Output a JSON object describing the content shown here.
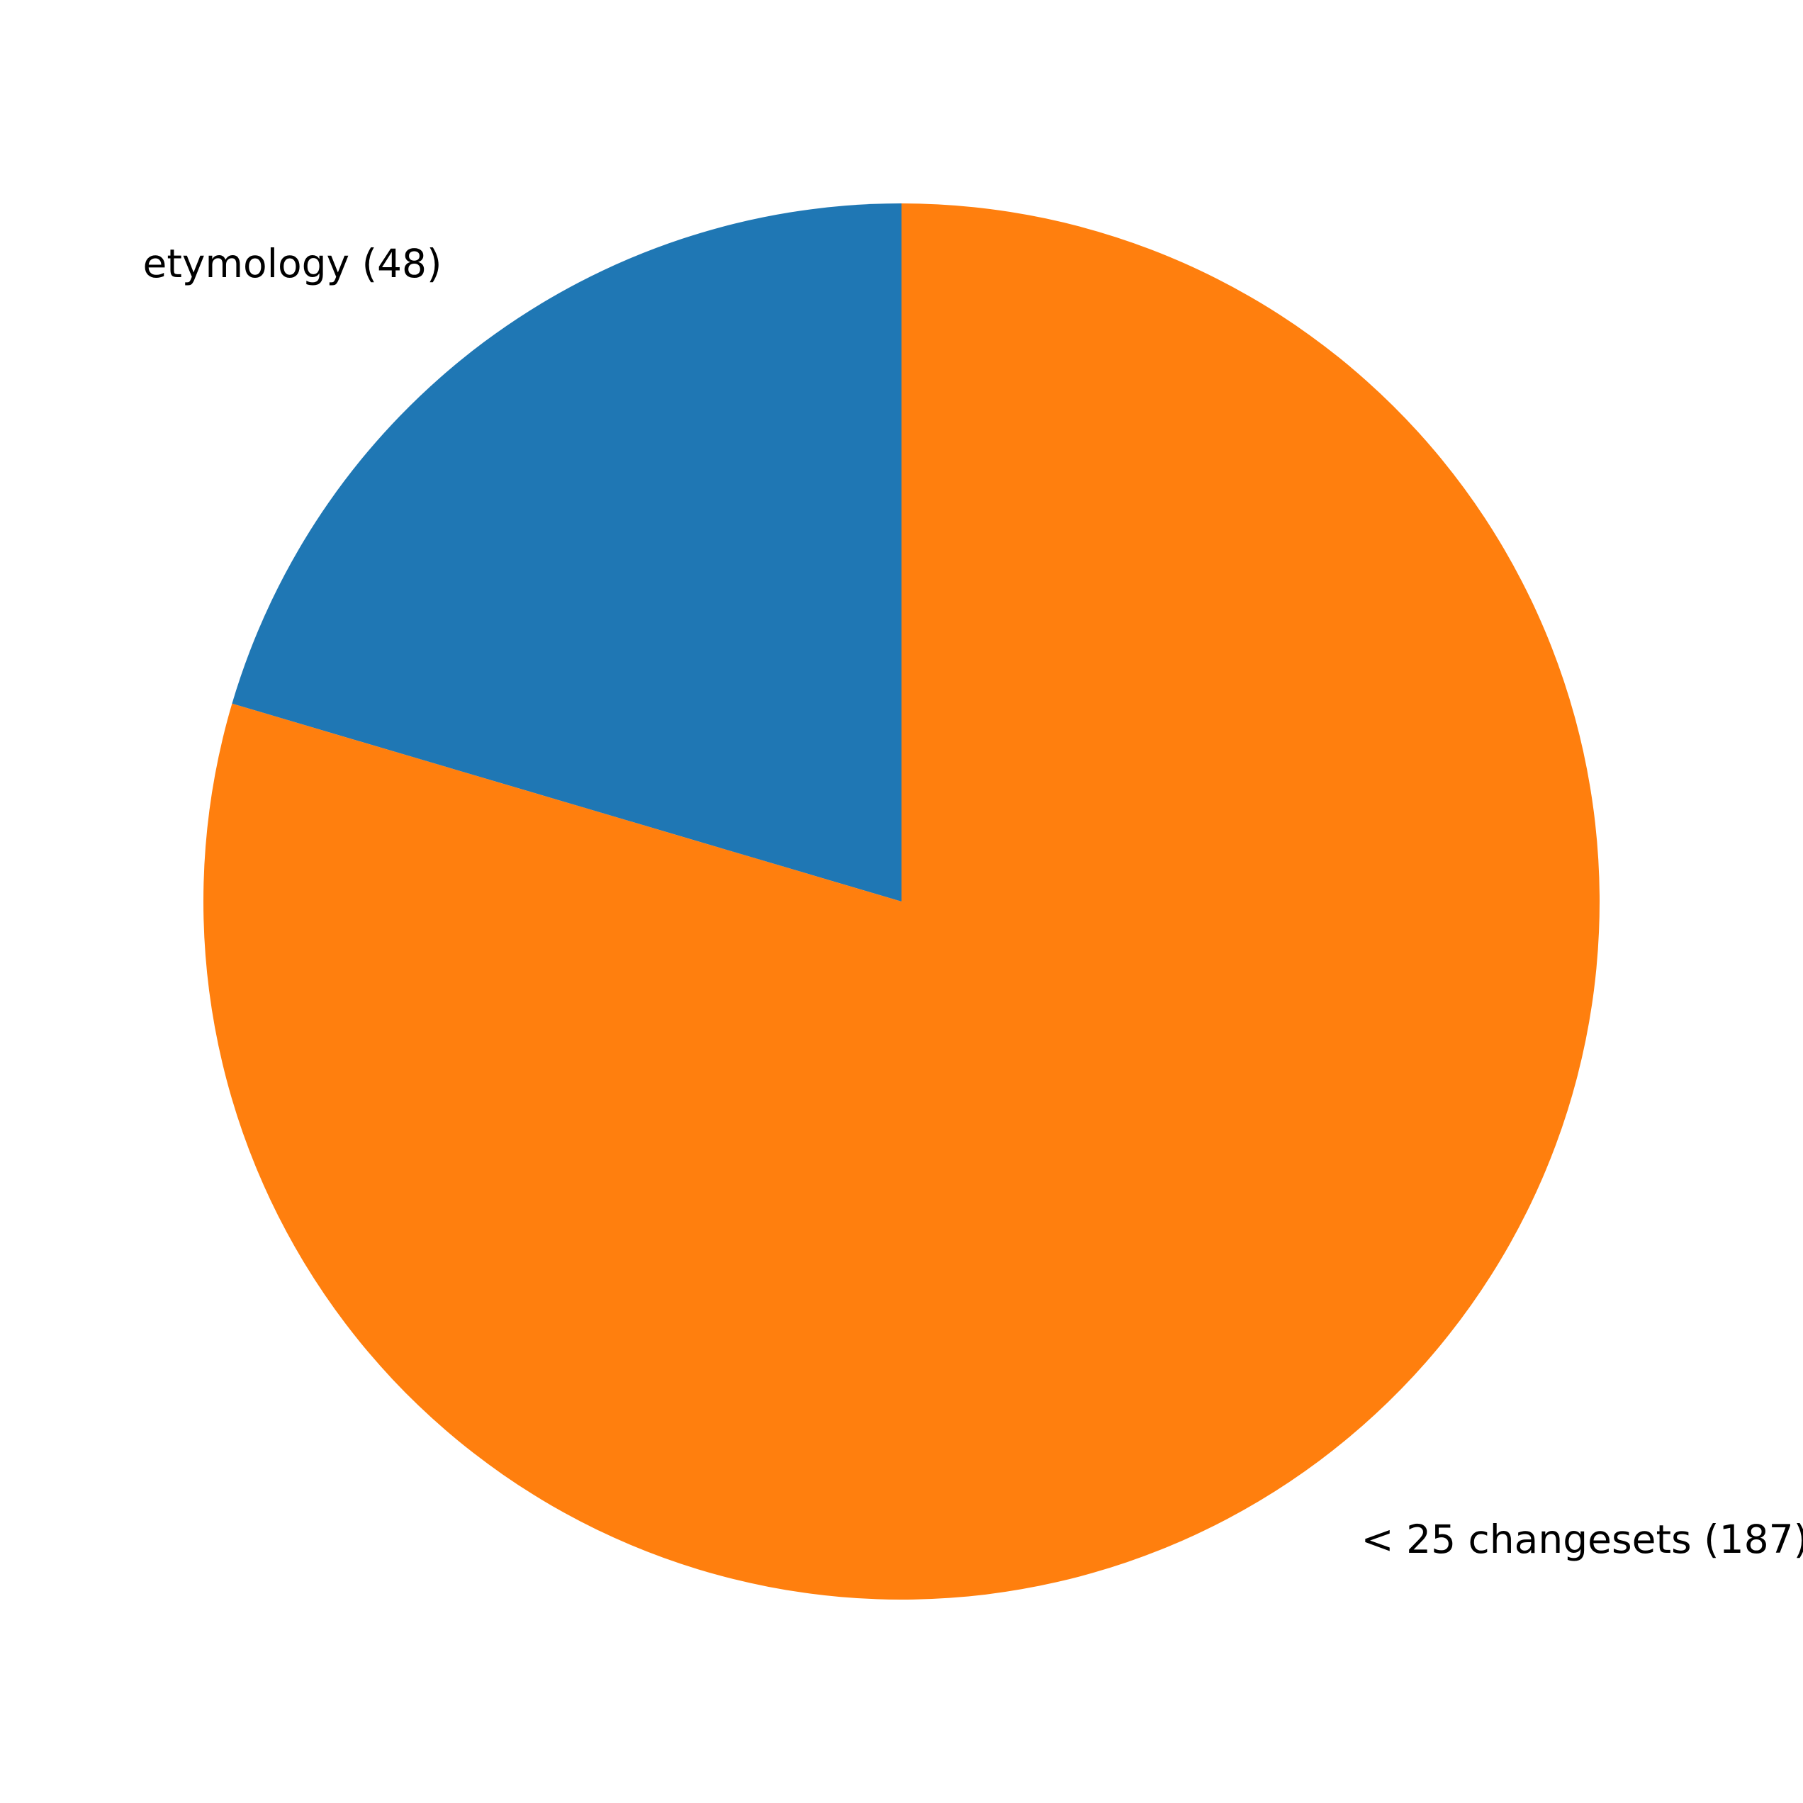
{
  "chart_data": {
    "type": "pie",
    "title": "",
    "slices": [
      {
        "label": "etymology (48)",
        "value": 48,
        "color": "#1f77b4"
      },
      {
        "label": "< 25 changesets (187)",
        "value": 187,
        "color": "#ff7f0e"
      }
    ],
    "start_angle_deg": 90,
    "direction": "counterclockwise",
    "legend": "none"
  }
}
